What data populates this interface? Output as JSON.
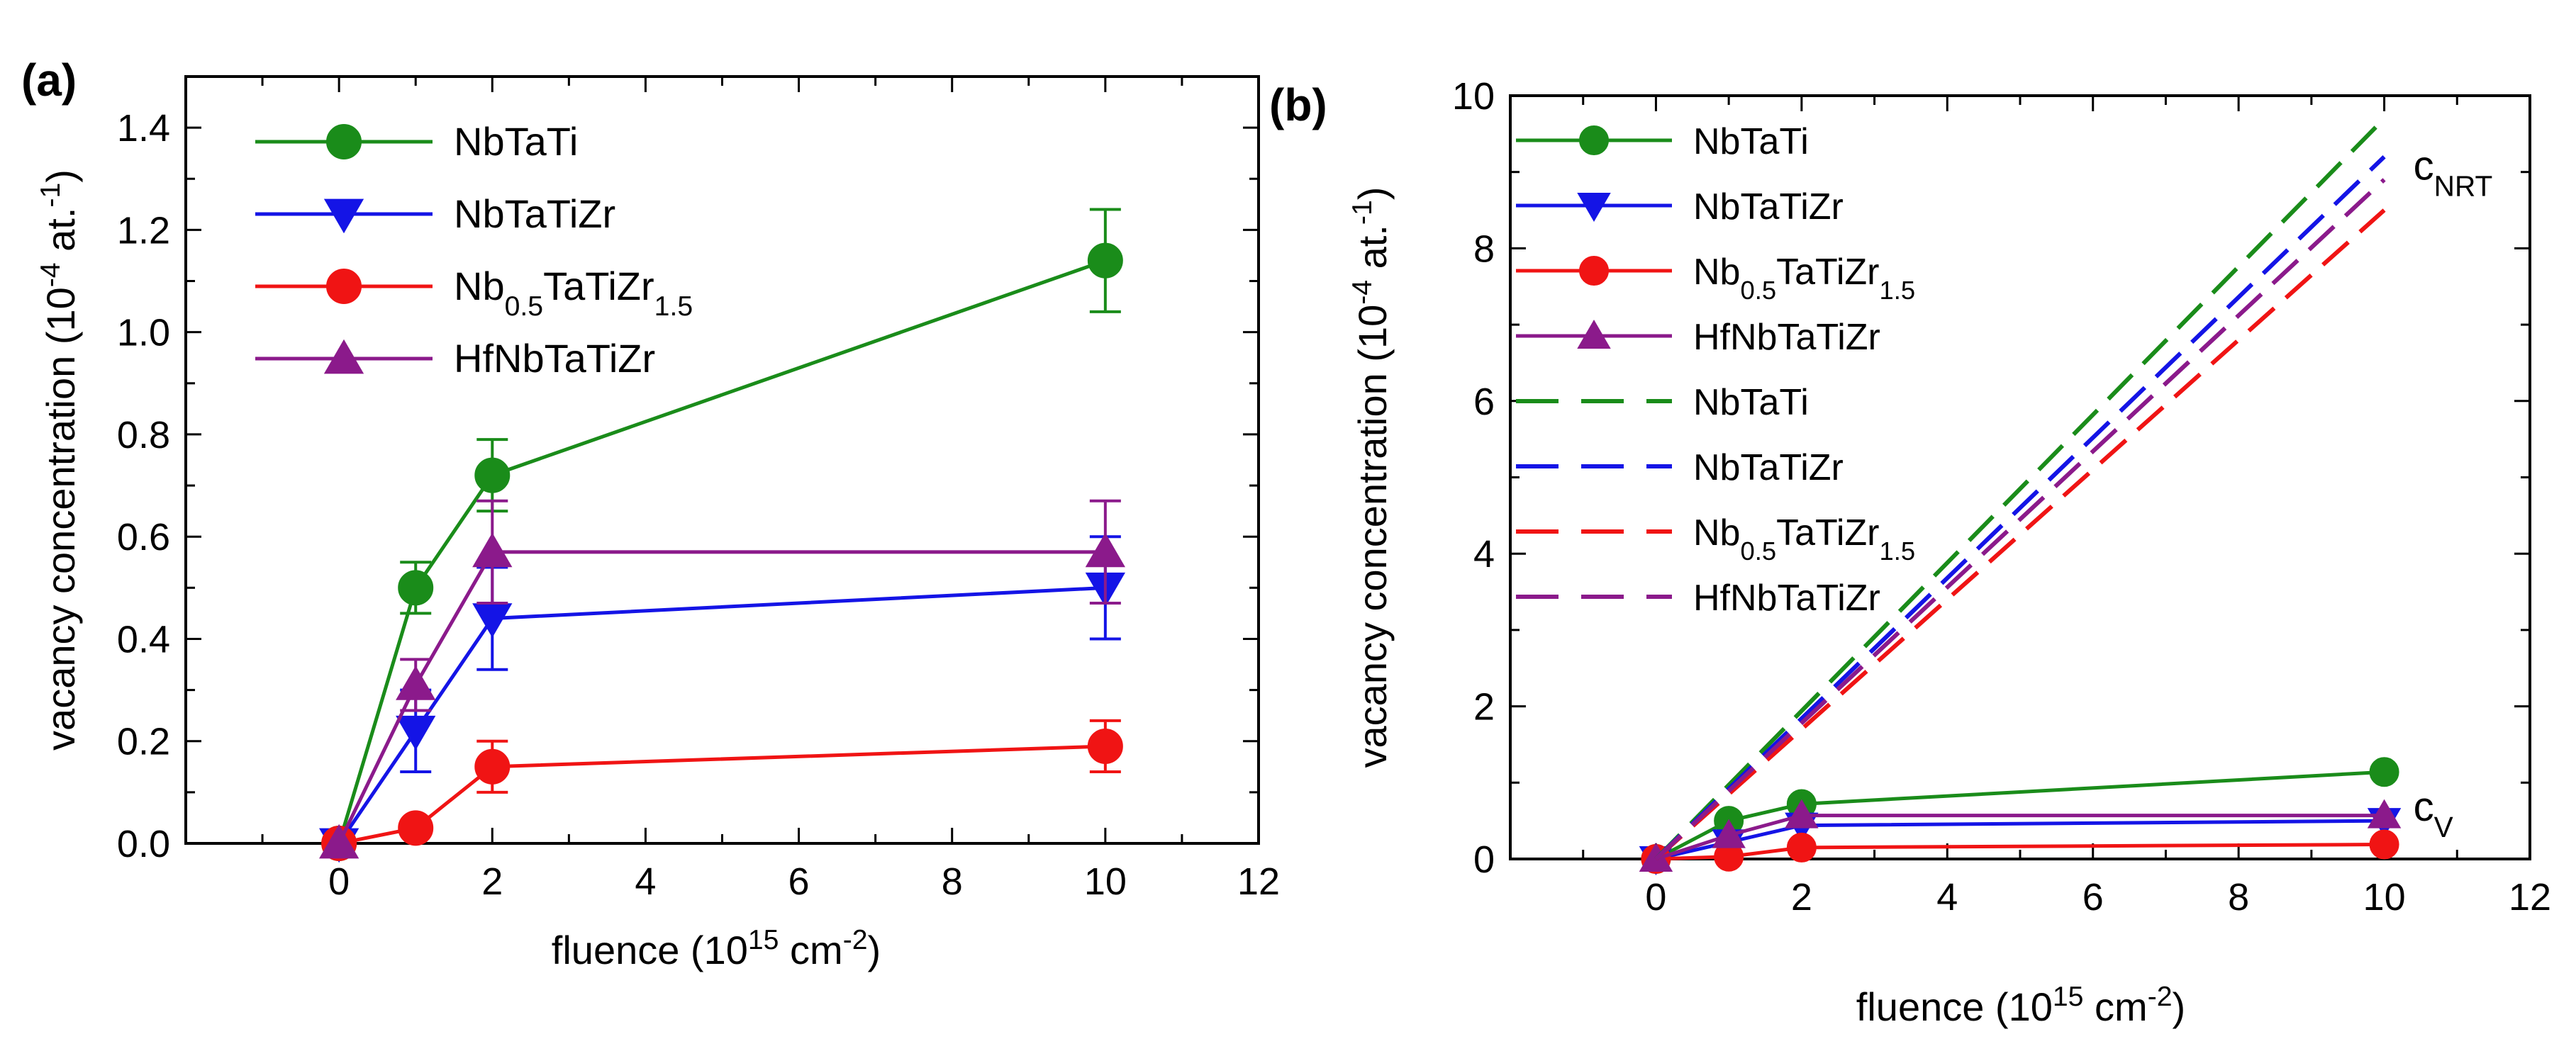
{
  "chart_data": [
    {
      "type": "line",
      "panel_label": "(a)",
      "xlabel": "fluence (10",
      "xlabel_sup": "15",
      "xlabel_mid": " cm",
      "xlabel_sup2": "-2",
      "xlabel_end": ")",
      "ylabel": "vacancy concentration (10",
      "ylabel_sup": "-4",
      "ylabel_mid": " at.",
      "ylabel_sup2": "-1",
      "ylabel_end": ")",
      "xlim": [
        -2,
        12
      ],
      "ylim": [
        0,
        1.5
      ],
      "xticks": [
        "0",
        "2",
        "4",
        "6",
        "8",
        "10",
        "12"
      ],
      "yticks": [
        "0.0",
        "0.2",
        "0.4",
        "0.6",
        "0.8",
        "1.0",
        "1.2",
        "1.4"
      ],
      "legend_position": "top-left",
      "series": [
        {
          "name": "NbTaTi",
          "color": "#1a8c1a",
          "marker": "circle",
          "x": [
            0,
            1,
            2,
            10
          ],
          "values": [
            0,
            0.5,
            0.72,
            1.14
          ],
          "err": [
            0,
            0.05,
            0.07,
            0.1
          ]
        },
        {
          "name": "NbTaTiZr",
          "color": "#1414e6",
          "marker": "triangle-down",
          "x": [
            0,
            1,
            2,
            10
          ],
          "values": [
            0,
            0.22,
            0.44,
            0.5
          ],
          "err": [
            0,
            0.08,
            0.1,
            0.1
          ]
        },
        {
          "name": "Nb",
          "name_sub1": "0.5",
          "name_mid": "TaTiZr",
          "name_sub2": "1.5",
          "color": "#f01414",
          "marker": "circle",
          "x": [
            0,
            1,
            2,
            10
          ],
          "values": [
            0,
            0.03,
            0.15,
            0.19
          ],
          "err": [
            0,
            0.01,
            0.05,
            0.05
          ]
        },
        {
          "name": "HfNbTaTiZr",
          "color": "#8b1a8b",
          "marker": "triangle-up",
          "x": [
            0,
            1,
            2,
            10
          ],
          "values": [
            0,
            0.31,
            0.57,
            0.57
          ],
          "err": [
            0,
            0.05,
            0.1,
            0.1
          ]
        }
      ]
    },
    {
      "type": "line",
      "panel_label": "(b)",
      "xlabel": "fluence (10",
      "xlabel_sup": "15",
      "xlabel_mid": " cm",
      "xlabel_sup2": "-2",
      "xlabel_end": ")",
      "ylabel": "vacancy concentration (10",
      "ylabel_sup": "-4",
      "ylabel_mid": " at.",
      "ylabel_sup2": "-1",
      "ylabel_end": ")",
      "xlim": [
        -2,
        12
      ],
      "ylim": [
        0,
        10
      ],
      "xticks": [
        "0",
        "2",
        "4",
        "6",
        "8",
        "10",
        "12"
      ],
      "yticks": [
        "0",
        "2",
        "4",
        "6",
        "8",
        "10"
      ],
      "legend_position": "top-left",
      "annotations": [
        {
          "text": "c",
          "sub": "NRT",
          "x": 10.4,
          "y": 8.9
        },
        {
          "text": "c",
          "sub": "V",
          "x": 10.4,
          "y": 0.5
        }
      ],
      "series": [
        {
          "name": "NbTaTi",
          "color": "#1a8c1a",
          "marker": "circle",
          "style": "solid",
          "x": [
            0,
            1,
            2,
            10
          ],
          "values": [
            0,
            0.5,
            0.72,
            1.14
          ]
        },
        {
          "name": "NbTaTiZr",
          "color": "#1414e6",
          "marker": "triangle-down",
          "style": "solid",
          "x": [
            0,
            1,
            2,
            10
          ],
          "values": [
            0,
            0.22,
            0.44,
            0.5
          ]
        },
        {
          "name": "Nb",
          "name_sub1": "0.5",
          "name_mid": "TaTiZr",
          "name_sub2": "1.5",
          "color": "#f01414",
          "marker": "circle",
          "style": "solid",
          "x": [
            0,
            1,
            2,
            10
          ],
          "values": [
            0,
            0.03,
            0.15,
            0.19
          ]
        },
        {
          "name": "HfNbTaTiZr",
          "color": "#8b1a8b",
          "marker": "triangle-up",
          "style": "solid",
          "x": [
            0,
            1,
            2,
            10
          ],
          "values": [
            0,
            0.31,
            0.57,
            0.57
          ]
        },
        {
          "name": "NbTaTi",
          "color": "#1a8c1a",
          "marker": "none",
          "style": "dashed",
          "x": [
            0,
            10
          ],
          "values": [
            0,
            9.7
          ]
        },
        {
          "name": "NbTaTiZr",
          "color": "#1414e6",
          "marker": "none",
          "style": "dashed",
          "x": [
            0,
            10
          ],
          "values": [
            0,
            9.2
          ]
        },
        {
          "name": "Nb",
          "name_sub1": "0.5",
          "name_mid": "TaTiZr",
          "name_sub2": "1.5",
          "color": "#f01414",
          "marker": "none",
          "style": "dashed",
          "x": [
            0,
            10
          ],
          "values": [
            0,
            8.5
          ]
        },
        {
          "name": "HfNbTaTiZr",
          "color": "#8b1a8b",
          "marker": "none",
          "style": "dashed",
          "x": [
            0,
            10
          ],
          "values": [
            0,
            8.9
          ]
        }
      ]
    }
  ]
}
